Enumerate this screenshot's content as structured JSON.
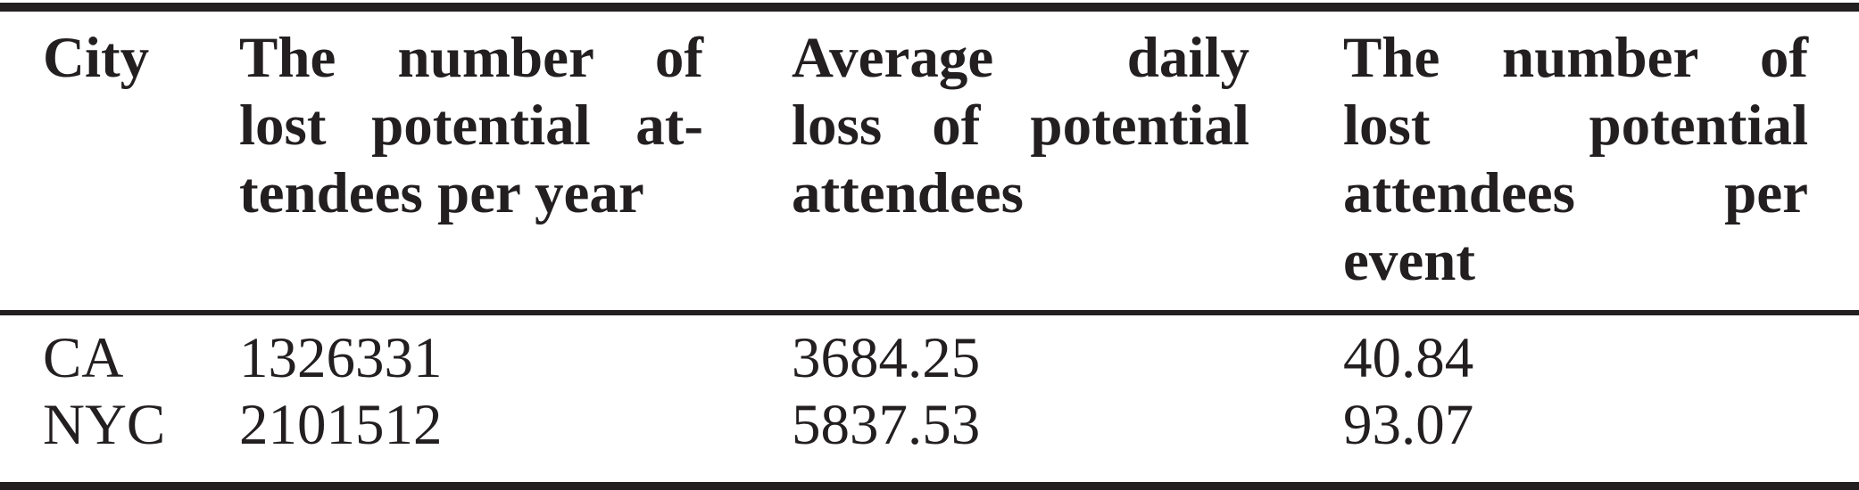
{
  "table": {
    "columns": [
      {
        "id": "city",
        "header_lines": [
          "City"
        ]
      },
      {
        "id": "lost-potential-attendees-per-year",
        "header_lines": [
          "The number of",
          "lost potential at-",
          "tendees per year"
        ]
      },
      {
        "id": "average-daily-loss",
        "header_lines": [
          "Average daily",
          "loss of potential",
          "attendees"
        ]
      },
      {
        "id": "lost-potential-attendees-per-event",
        "header_lines": [
          "The number of",
          "lost potential",
          "attendees per",
          "event"
        ]
      }
    ],
    "rows": [
      {
        "cells": [
          "CA",
          "1326331",
          "3684.25",
          "40.84"
        ]
      },
      {
        "cells": [
          "NYC",
          "2101512",
          "5837.53",
          "93.07"
        ]
      }
    ]
  },
  "chart_data": {
    "type": "table",
    "columns": [
      "City",
      "The number of lost potential attendees per year",
      "Average daily loss of potential attendees",
      "The number of lost potential attendees per event"
    ],
    "rows": [
      [
        "CA",
        1326331,
        3684.25,
        40.84
      ],
      [
        "NYC",
        2101512,
        5837.53,
        93.07
      ]
    ]
  },
  "colors": {
    "text": "#231f20",
    "rule": "#231f20",
    "background": "#ffffff"
  }
}
